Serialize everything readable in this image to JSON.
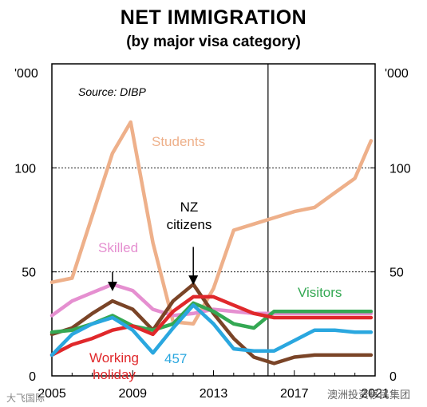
{
  "chart_data": {
    "type": "line",
    "title": "NET IMMIGRATION",
    "subtitle": "(by major visa category)",
    "unit_left": "'000",
    "unit_right": "'000",
    "source": "Source: DIBP",
    "xlim": [
      2005,
      2021
    ],
    "ylim": [
      0,
      150
    ],
    "xticks": [
      2005,
      2009,
      2013,
      2017,
      2021
    ],
    "yticks": [
      0,
      50,
      100
    ],
    "dashed_gridlines": [
      50,
      100
    ],
    "forecast_divider_x": 2015.7,
    "series": [
      {
        "name": "Students",
        "color": "#eeb08a",
        "x": [
          2005,
          2006,
          2007,
          2008,
          2008.9,
          2010,
          2011,
          2012,
          2013,
          2014,
          2015,
          2016,
          2017,
          2018,
          2019,
          2020,
          2020.8
        ],
        "y": [
          45,
          47,
          77,
          107,
          122,
          64,
          26,
          25,
          42,
          70,
          73,
          76,
          79,
          81,
          88,
          95,
          113
        ]
      },
      {
        "name": "Skilled",
        "color": "#e58fd0",
        "x": [
          2005,
          2006,
          2007,
          2008,
          2009,
          2010,
          2011,
          2012,
          2013,
          2014,
          2015,
          2016,
          2017,
          2018,
          2019,
          2020,
          2020.8
        ],
        "y": [
          29,
          36,
          40,
          44,
          41,
          32,
          29,
          30,
          32,
          31,
          30,
          30,
          30,
          30,
          30,
          30,
          30
        ]
      },
      {
        "name": "NZ citizens",
        "color": "#7a4427",
        "x": [
          2005,
          2006,
          2007,
          2008,
          2009,
          2010,
          2011,
          2012,
          2013,
          2014,
          2015,
          2016,
          2017,
          2018,
          2019,
          2020,
          2020.8
        ],
        "y": [
          20,
          23,
          30,
          36,
          32,
          22,
          36,
          44,
          30,
          18,
          9,
          6,
          9,
          10,
          10,
          10,
          10
        ]
      },
      {
        "name": "Visitors",
        "color": "#34a853",
        "x": [
          2005,
          2006,
          2007,
          2008,
          2009,
          2010,
          2011,
          2012,
          2013,
          2014,
          2015,
          2016,
          2017,
          2018,
          2019,
          2020,
          2020.8
        ],
        "y": [
          21,
          22,
          25,
          29,
          24,
          22,
          25,
          35,
          31,
          25,
          23,
          31,
          31,
          31,
          31,
          31,
          31
        ]
      },
      {
        "name": "Working holiday",
        "color": "#e0282b",
        "x": [
          2005,
          2006,
          2007,
          2008,
          2009,
          2010,
          2011,
          2012,
          2013,
          2014,
          2015,
          2016,
          2017,
          2018,
          2019,
          2020,
          2020.8
        ],
        "y": [
          10,
          15,
          18,
          22,
          24,
          20,
          31,
          38,
          38,
          34,
          30,
          28,
          28,
          28,
          28,
          28,
          28
        ]
      },
      {
        "name": "457",
        "color": "#2aa7df",
        "x": [
          2005,
          2006,
          2007,
          2008,
          2009,
          2010,
          2011,
          2012,
          2013,
          2014,
          2015,
          2016,
          2017,
          2018,
          2019,
          2020,
          2020.8
        ],
        "y": [
          10,
          20,
          25,
          28,
          22,
          11,
          23,
          34,
          25,
          13,
          12,
          12,
          17,
          22,
          22,
          21,
          21
        ]
      }
    ],
    "labels": {
      "students": "Students",
      "skilled": "Skilled",
      "nz_line1": "NZ",
      "nz_line2": "citizens",
      "visitors": "Visitors",
      "working_line1": "Working",
      "working_line2": "holiday",
      "v457": "457"
    },
    "arrows": [
      {
        "series": "Skilled",
        "from": [
          2008,
          50
        ],
        "to": [
          2008,
          43
        ]
      },
      {
        "series": "NZ citizens",
        "from": [
          2012,
          62
        ],
        "to": [
          2012,
          46
        ]
      }
    ]
  },
  "watermark_left": "大飞国际",
  "watermark_right": "澳洲投资移民集团"
}
